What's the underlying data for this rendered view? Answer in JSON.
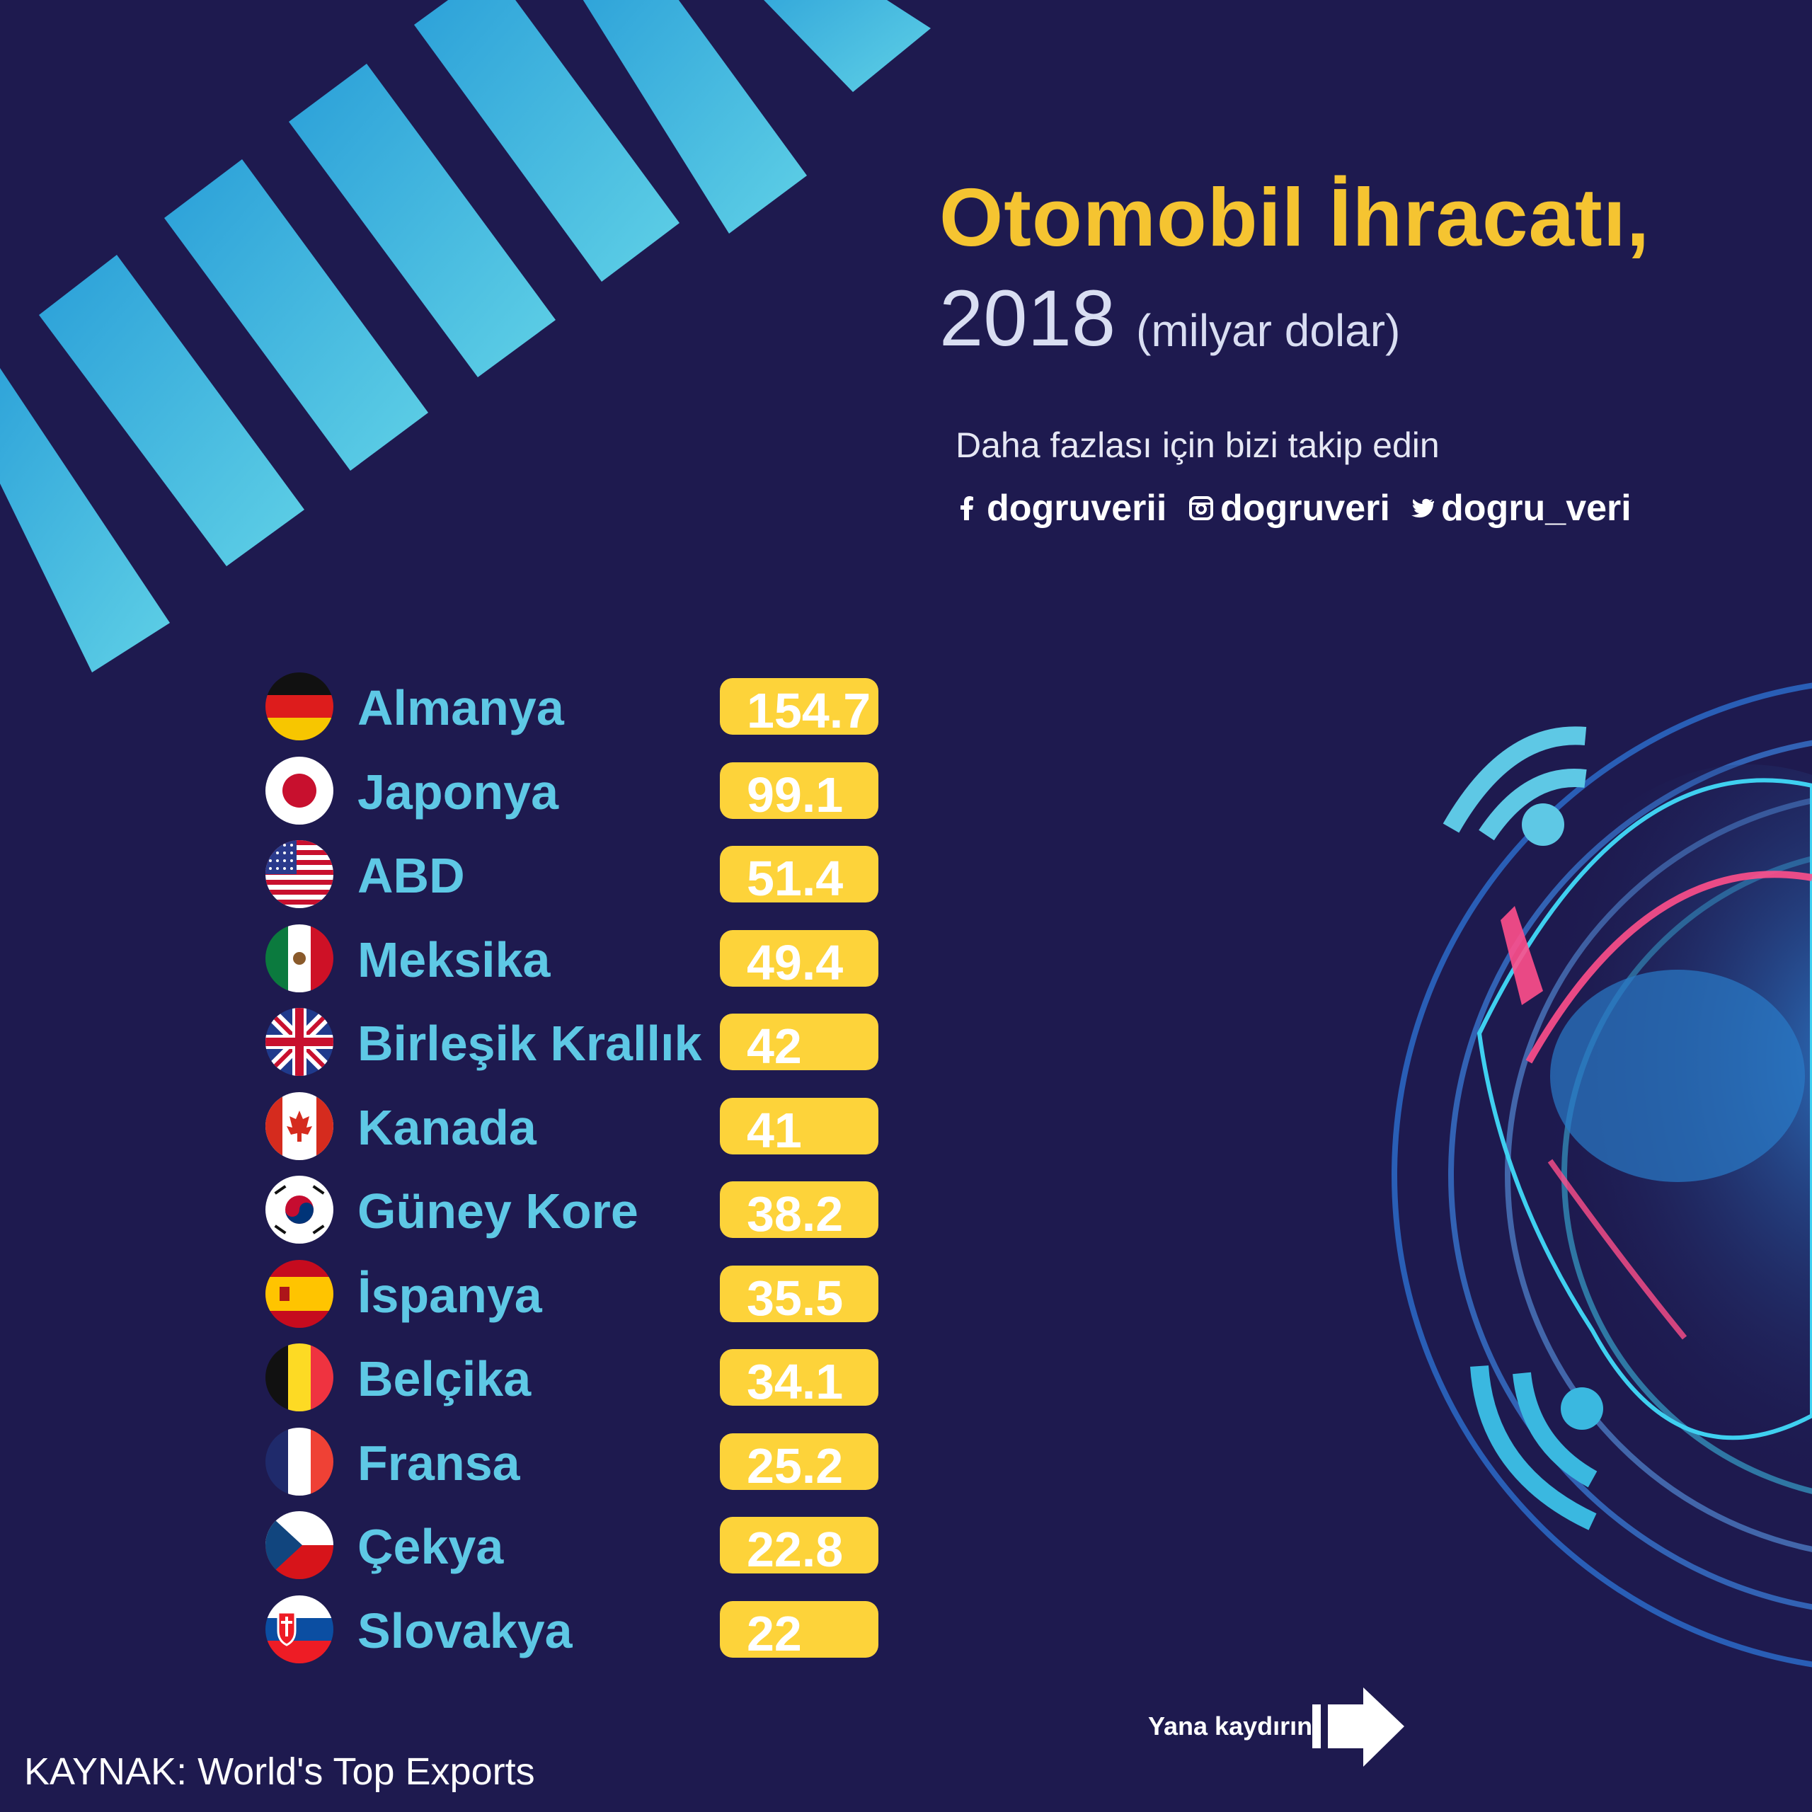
{
  "title": "Otomobil İhracatı,",
  "year": "2018",
  "unit": "(milyar dolar)",
  "follow_text": "Daha fazlası için bizi takip edin",
  "social": [
    {
      "icon": "facebook-icon",
      "handle": "dogruverii"
    },
    {
      "icon": "instagram-icon",
      "handle": "dogruveri"
    },
    {
      "icon": "twitter-icon",
      "handle": "dogru_veri"
    }
  ],
  "source": "KAYNAK: World's Top Exports",
  "swipe_text": "Yana kaydırın",
  "colors": {
    "background": "#1e1a4f",
    "title": "#f5c431",
    "country_label": "#5ec8e5",
    "value_pill": "#fdd33a",
    "stripes": "#3ab8e0"
  },
  "chart_data": {
    "type": "table",
    "title": "Otomobil İhracatı, 2018 (milyar dolar)",
    "rows": [
      {
        "country": "Almanya",
        "value": "154.7",
        "flag": "germany-flag-icon"
      },
      {
        "country": "Japonya",
        "value": "99.1",
        "flag": "japan-flag-icon"
      },
      {
        "country": "ABD",
        "value": "51.4",
        "flag": "usa-flag-icon"
      },
      {
        "country": "Meksika",
        "value": "49.4",
        "flag": "mexico-flag-icon"
      },
      {
        "country": "Birleşik Krallık",
        "value": "42",
        "flag": "uk-flag-icon"
      },
      {
        "country": "Kanada",
        "value": "41",
        "flag": "canada-flag-icon"
      },
      {
        "country": "Güney Kore",
        "value": "38.2",
        "flag": "south-korea-flag-icon"
      },
      {
        "country": "İspanya",
        "value": "35.5",
        "flag": "spain-flag-icon"
      },
      {
        "country": "Belçika",
        "value": "34.1",
        "flag": "belgium-flag-icon"
      },
      {
        "country": "Fransa",
        "value": "25.2",
        "flag": "france-flag-icon"
      },
      {
        "country": "Çekya",
        "value": "22.8",
        "flag": "czechia-flag-icon"
      },
      {
        "country": "Slovakya",
        "value": "22",
        "flag": "slovakia-flag-icon"
      }
    ]
  }
}
